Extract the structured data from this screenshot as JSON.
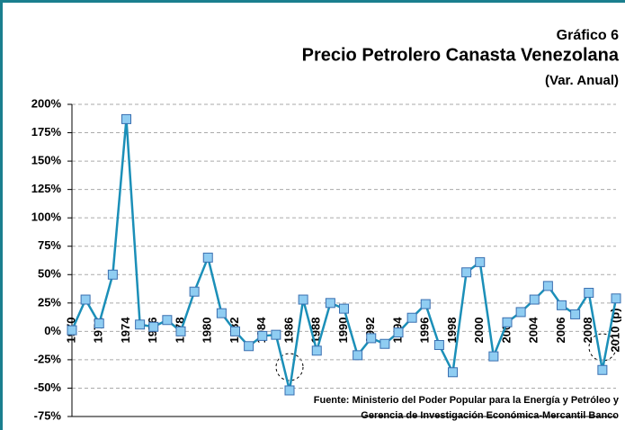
{
  "chart_data": {
    "type": "line",
    "label": "Gráfico 6",
    "title": "Precio Petrolero Canasta Venezolana",
    "subtitle": "(Var. Anual)",
    "source": [
      "Fuente: Ministerio del Poder Popular para la Energía y Petróleo y",
      "Gerencia de Investigación Económica-Mercantil Banco"
    ],
    "categories": [
      "1970",
      null,
      "1972",
      null,
      "1974",
      null,
      "1976",
      null,
      "1978",
      null,
      "1980",
      null,
      "1982",
      null,
      "1984",
      null,
      "1986",
      null,
      "1988",
      null,
      "1990",
      null,
      "1992",
      null,
      "1994",
      null,
      "1996",
      null,
      "1998",
      null,
      "2000",
      null,
      "2002",
      null,
      "2004",
      null,
      "2006",
      null,
      "2008",
      null,
      "2010 (p)"
    ],
    "series": [
      {
        "color": "#1b8fb8",
        "marker_color": "#8fcdf2",
        "values": [
          1,
          28,
          7,
          50,
          187,
          6,
          4,
          10,
          0,
          35,
          65,
          16,
          0,
          -13,
          -4,
          -3,
          -52,
          28,
          -17,
          25,
          20,
          -21,
          -6,
          -11,
          -1,
          12,
          24,
          -12,
          -36,
          52,
          61,
          -22,
          8,
          17,
          28,
          40,
          23,
          15,
          34,
          -34,
          29
        ]
      }
    ],
    "ylim": [
      -75,
      200
    ],
    "yticks": [
      {
        "value": -75,
        "label": "-75%"
      },
      {
        "value": -50,
        "label": "-50%"
      },
      {
        "value": -25,
        "label": "-25%"
      },
      {
        "value": 0,
        "label": "0%"
      },
      {
        "value": 25,
        "label": "25%"
      },
      {
        "value": 50,
        "label": "50%"
      },
      {
        "value": 75,
        "label": "75%"
      },
      {
        "value": 100,
        "label": "100%"
      },
      {
        "value": 125,
        "label": "125%"
      },
      {
        "value": 150,
        "label": "150%"
      },
      {
        "value": 175,
        "label": "175%"
      },
      {
        "value": 200,
        "label": "200%"
      }
    ],
    "grid": true
  }
}
